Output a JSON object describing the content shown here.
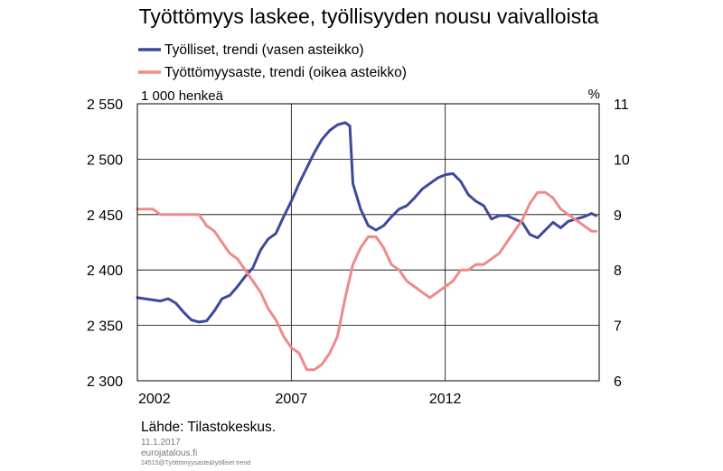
{
  "chart_data": {
    "type": "line",
    "title": "Työttömyys laskee, työllisyyden nousu vaivalloista",
    "left_unit": "1 000 henkeä",
    "right_unit": "%",
    "source": "Lähde:  Tilastokeskus.",
    "date": "11.1.2017",
    "site": "eurojatalous.fi",
    "file_ref": "24515@Työttömyysaste&työlliset trend",
    "x_ticks": [
      "2002",
      "2007",
      "2012"
    ],
    "x_range": [
      2002,
      2017
    ],
    "y_left": {
      "min": 2300,
      "max": 2550,
      "ticks": [
        2550,
        2500,
        2450,
        2400,
        2350,
        2300
      ],
      "tick_labels": [
        "2 550",
        "2 500",
        "2 450",
        "2 400",
        "2 350",
        "2 300"
      ]
    },
    "y_right": {
      "min": 6,
      "max": 11,
      "ticks": [
        11,
        10,
        9,
        8,
        7,
        6
      ],
      "tick_labels": [
        "11",
        "10",
        "9",
        "8",
        "7",
        "6"
      ]
    },
    "grid": "vertical lines at 2007 and 2012, horizontal lines at each tick",
    "legend_position": "top-left",
    "series": [
      {
        "name": "Työlliset, trendi (vasen asteikko)",
        "axis": "left",
        "color": "#3d4a9c",
        "x": [
          2002.0,
          2002.25,
          2002.5,
          2002.75,
          2003.0,
          2003.25,
          2003.5,
          2003.75,
          2004.0,
          2004.25,
          2004.5,
          2004.75,
          2005.0,
          2005.25,
          2005.5,
          2005.75,
          2006.0,
          2006.25,
          2006.5,
          2006.75,
          2007.0,
          2007.25,
          2007.5,
          2007.75,
          2008.0,
          2008.25,
          2008.5,
          2008.75,
          2008.9,
          2009.0,
          2009.25,
          2009.5,
          2009.75,
          2010.0,
          2010.25,
          2010.5,
          2010.75,
          2011.0,
          2011.25,
          2011.5,
          2011.75,
          2012.0,
          2012.25,
          2012.5,
          2012.75,
          2013.0,
          2013.25,
          2013.5,
          2013.75,
          2014.0,
          2014.25,
          2014.5,
          2014.75,
          2015.0,
          2015.25,
          2015.5,
          2015.75,
          2016.0,
          2016.25,
          2016.5,
          2016.75,
          2016.9
        ],
        "values": [
          2375,
          2374,
          2373,
          2372,
          2374,
          2370,
          2362,
          2355,
          2353,
          2354,
          2363,
          2374,
          2377,
          2385,
          2394,
          2402,
          2418,
          2428,
          2433,
          2448,
          2462,
          2478,
          2492,
          2506,
          2518,
          2526,
          2531,
          2533,
          2530,
          2478,
          2455,
          2440,
          2436,
          2440,
          2448,
          2455,
          2458,
          2465,
          2473,
          2478,
          2483,
          2486,
          2487,
          2480,
          2468,
          2462,
          2458,
          2446,
          2449,
          2449,
          2446,
          2443,
          2432,
          2429,
          2436,
          2443,
          2438,
          2444,
          2446,
          2448,
          2451,
          2449
        ]
      },
      {
        "name": "Työttömyysaste, trendi (oikea asteikko)",
        "axis": "right",
        "color": "#f08a8a",
        "x": [
          2002.0,
          2002.25,
          2002.5,
          2002.75,
          2003.0,
          2003.25,
          2003.5,
          2003.75,
          2004.0,
          2004.25,
          2004.5,
          2004.75,
          2005.0,
          2005.25,
          2005.5,
          2005.75,
          2006.0,
          2006.25,
          2006.5,
          2006.75,
          2007.0,
          2007.25,
          2007.5,
          2007.75,
          2008.0,
          2008.25,
          2008.5,
          2008.75,
          2009.0,
          2009.25,
          2009.5,
          2009.75,
          2010.0,
          2010.25,
          2010.5,
          2010.75,
          2011.0,
          2011.25,
          2011.5,
          2011.75,
          2012.0,
          2012.25,
          2012.5,
          2012.75,
          2013.0,
          2013.25,
          2013.5,
          2013.75,
          2014.0,
          2014.25,
          2014.5,
          2014.75,
          2015.0,
          2015.25,
          2015.5,
          2015.75,
          2016.0,
          2016.25,
          2016.5,
          2016.75,
          2016.9
        ],
        "values": [
          9.1,
          9.1,
          9.1,
          9.0,
          9.0,
          9.0,
          9.0,
          9.0,
          9.0,
          8.8,
          8.7,
          8.5,
          8.3,
          8.2,
          8.0,
          7.8,
          7.6,
          7.3,
          7.1,
          6.8,
          6.6,
          6.5,
          6.2,
          6.2,
          6.3,
          6.5,
          6.8,
          7.5,
          8.1,
          8.4,
          8.6,
          8.6,
          8.4,
          8.1,
          8.0,
          7.8,
          7.7,
          7.6,
          7.5,
          7.6,
          7.7,
          7.8,
          8.0,
          8.0,
          8.1,
          8.1,
          8.2,
          8.3,
          8.5,
          8.7,
          8.9,
          9.2,
          9.4,
          9.4,
          9.3,
          9.1,
          9.0,
          8.9,
          8.8,
          8.7,
          8.7
        ]
      }
    ]
  }
}
